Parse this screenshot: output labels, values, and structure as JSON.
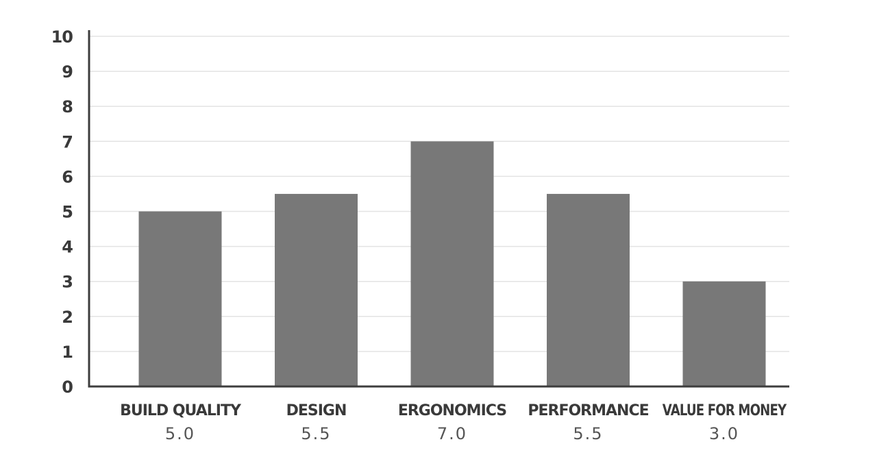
{
  "chart_data": {
    "type": "bar",
    "categories": [
      "BUILD QUALITY",
      "DESIGN",
      "ERGONOMICS",
      "PERFORMANCE",
      "VALUE FOR MONEY"
    ],
    "values": [
      5.0,
      5.5,
      7.0,
      5.5,
      3.0
    ],
    "value_labels": [
      "5.0",
      "5.5",
      "7.0",
      "5.5",
      "3.0"
    ],
    "ylim": [
      0,
      10
    ],
    "yticks": [
      "0",
      "1",
      "2",
      "3",
      "4",
      "5",
      "6",
      "7",
      "8",
      "9",
      "10"
    ],
    "grid": true,
    "bar_color": "#787878",
    "axis_color": "#3d3d3d",
    "grid_color": "#e3e3e3"
  }
}
